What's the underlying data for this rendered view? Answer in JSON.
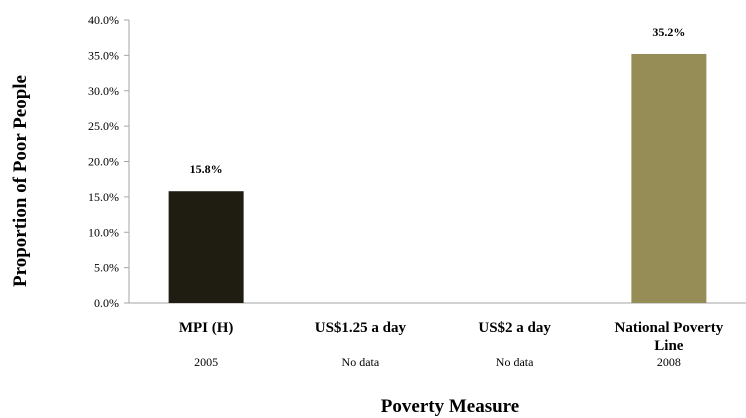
{
  "chart_data": {
    "type": "bar",
    "categories": [
      "MPI (H)",
      "US$1.25 a day",
      "US$2 a day",
      "National Poverty Line"
    ],
    "category_years": [
      "2005",
      "No data",
      "No data",
      "2008"
    ],
    "values": [
      15.8,
      null,
      null,
      35.2
    ],
    "data_labels": [
      "15.8%",
      "",
      "",
      "35.2%"
    ],
    "bar_colors": [
      "#1f1c12",
      "#1f1c12",
      "#1f1c12",
      "#968c55"
    ],
    "ylabel": "Proportion  of Poor People",
    "xlabel": "Poverty Measure",
    "ylim": [
      0,
      40
    ],
    "yticks": [
      "0.0%",
      "5.0%",
      "10.0%",
      "15.0%",
      "20.0%",
      "25.0%",
      "30.0%",
      "35.0%",
      "40.0%"
    ],
    "grid": false,
    "legend": "none"
  }
}
